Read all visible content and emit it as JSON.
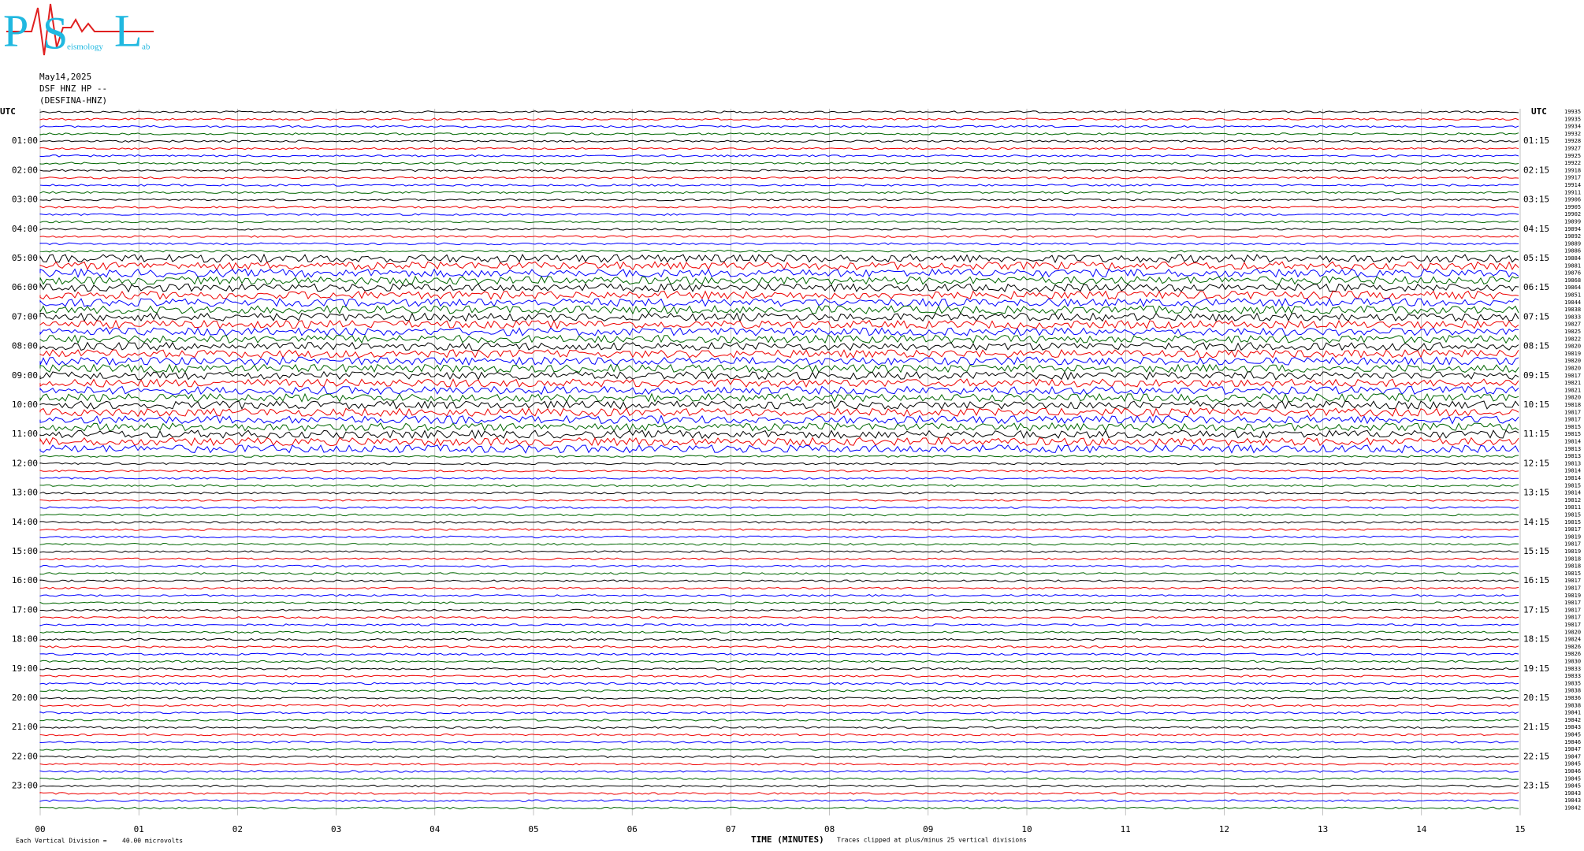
{
  "logo": {
    "letters": [
      "P",
      "S",
      "L"
    ],
    "small": [
      "eismology",
      "ab"
    ]
  },
  "header": {
    "date": "May14,2025",
    "channel": "DSF HNZ HP --",
    "station": "(DESFINA-HNZ)"
  },
  "utc_left": "UTC",
  "utc_right": "UTC",
  "left_labels": [
    "01:00",
    "02:00",
    "03:00",
    "04:00",
    "05:00",
    "06:00",
    "07:00",
    "08:00",
    "09:00",
    "10:00",
    "11:00",
    "12:00",
    "13:00",
    "14:00",
    "15:00",
    "16:00",
    "17:00",
    "18:00",
    "19:00",
    "20:00",
    "21:00",
    "22:00",
    "23:00"
  ],
  "right_labels": [
    "01:15",
    "02:15",
    "03:15",
    "04:15",
    "05:15",
    "06:15",
    "07:15",
    "08:15",
    "09:15",
    "10:15",
    "11:15",
    "12:15",
    "13:15",
    "14:15",
    "15:15",
    "16:15",
    "17:15",
    "18:15",
    "19:15",
    "20:15",
    "21:15",
    "22:15",
    "23:15"
  ],
  "row_numbers": [
    19935,
    19935,
    19934,
    19932,
    19928,
    19927,
    19925,
    19922,
    19918,
    19917,
    19914,
    19911,
    19906,
    19905,
    19902,
    19899,
    19894,
    19892,
    19889,
    19886,
    19884,
    19881,
    19876,
    19868,
    19864,
    19851,
    19844,
    19838,
    19833,
    19827,
    19825,
    19822,
    19820,
    19819,
    19820,
    19820,
    19817,
    19821,
    19821,
    19820,
    19818,
    19817,
    19817,
    19815,
    19815,
    19814,
    19813,
    19813,
    19813,
    19814,
    19814,
    19815,
    19814,
    19812,
    19811,
    19815,
    19815,
    19817,
    19819,
    19817,
    19819,
    19818,
    19818,
    19815,
    19817,
    19817,
    19819,
    19817,
    19817,
    19817,
    19817,
    19820,
    19824,
    19826,
    19826,
    19830,
    19833,
    19833,
    19835,
    19838,
    19836,
    19838,
    19841,
    19842,
    19843,
    19845,
    19846,
    19847,
    19847,
    19845,
    19846,
    19845,
    19845,
    19843,
    19843,
    19842
  ],
  "x_ticks": [
    "00",
    "01",
    "02",
    "03",
    "04",
    "05",
    "06",
    "07",
    "08",
    "09",
    "10",
    "11",
    "12",
    "13",
    "14",
    "15"
  ],
  "x_title": "TIME (MINUTES)",
  "clip_note": "Traces clipped at plus/minus 25 vertical divisions",
  "scale_label": "Each Vertical Division =",
  "scale_value": "40.00 microvolts"
}
